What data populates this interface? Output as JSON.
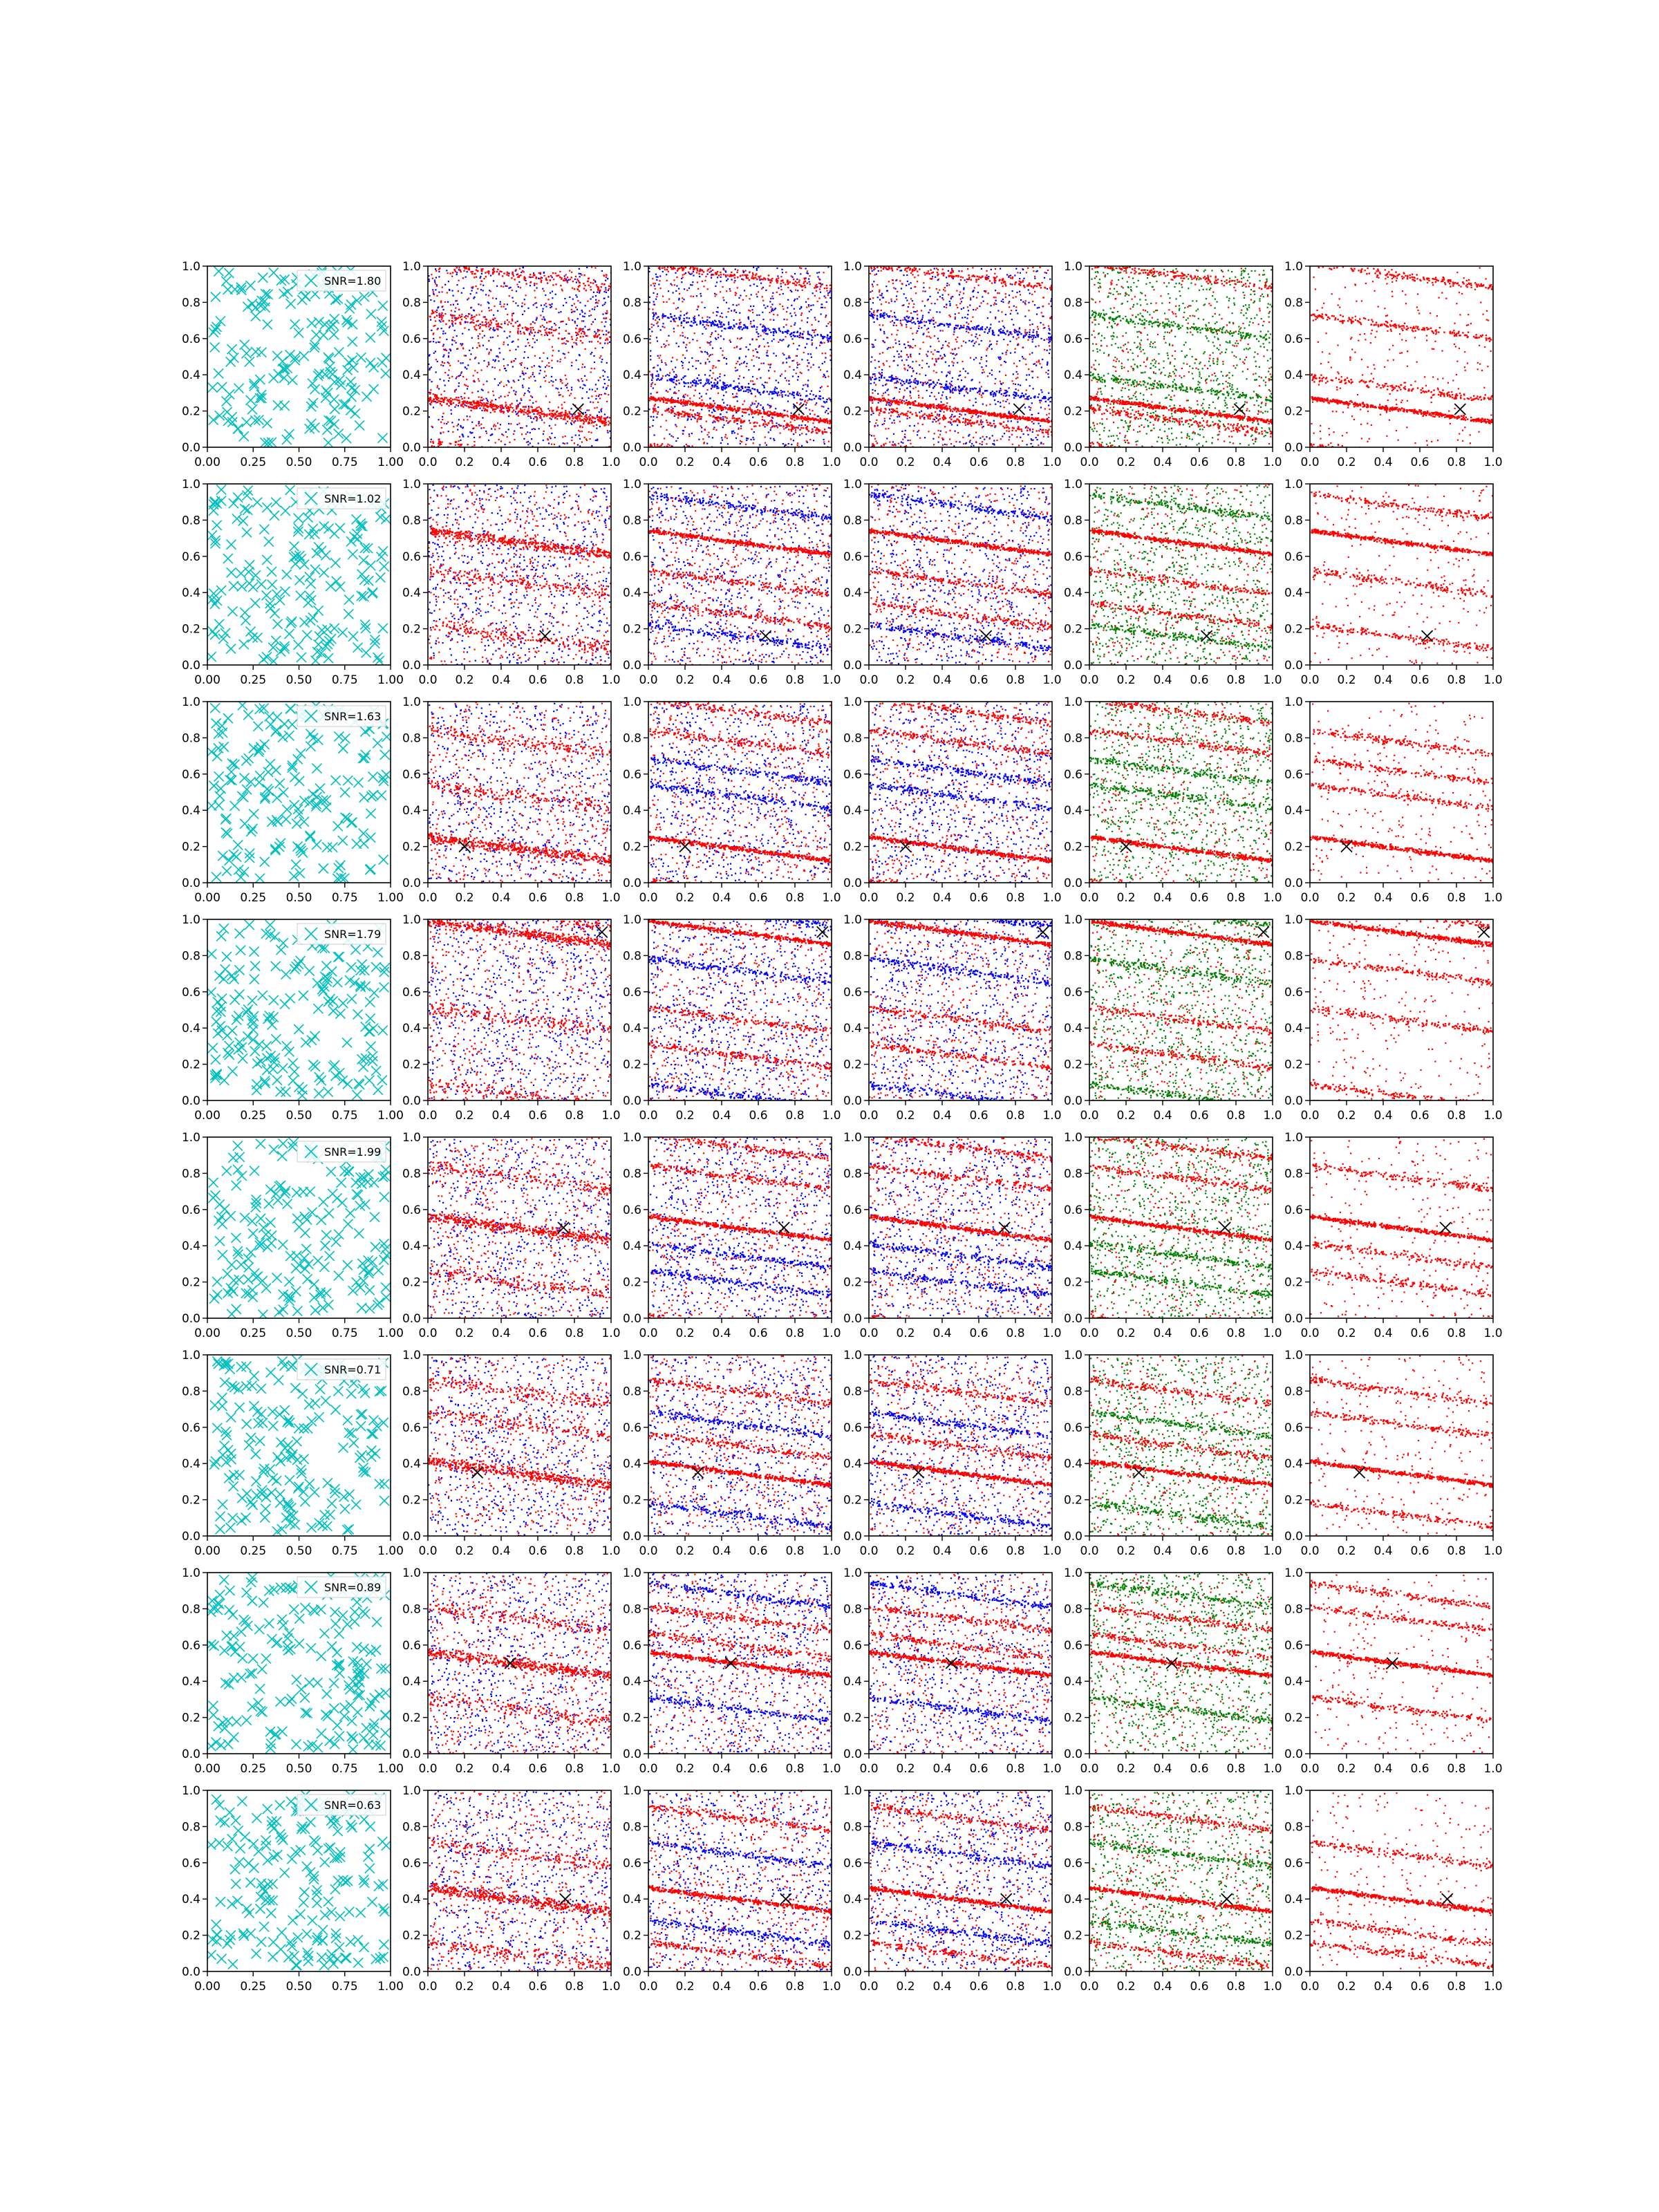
{
  "figure": {
    "rows": 8,
    "cols": 6
  },
  "colors": {
    "cyan": "#00bfbf",
    "red": "#ff0000",
    "blue": "#0000ff",
    "green": "#008000",
    "marker": "#000000"
  },
  "axis_ticks": {
    "first_col_x": [
      "0.00",
      "0.25",
      "0.50",
      "0.75",
      "1.00"
    ],
    "other_cols_x": [
      "0.0",
      "0.2",
      "0.4",
      "0.6",
      "0.8",
      "1.0"
    ],
    "y": [
      "0.0",
      "0.2",
      "0.4",
      "0.6",
      "0.8",
      "1.0"
    ]
  },
  "chart_data": {
    "type": "scatter",
    "layout": "8 rows x 6 columns grid of scatter panels",
    "xlim": [
      0,
      1
    ],
    "ylim": [
      0,
      1
    ],
    "grid": false,
    "column_markers": [
      "cyan x",
      "red and blue dots",
      "red and blue dots",
      "red and blue dots",
      "red and green dots",
      "red dots"
    ],
    "rows": [
      {
        "snr_label": "SNR=1.80",
        "marker_x": [
          0.82,
          0.21
        ],
        "band_slope": -0.13,
        "band_offsets": [
          0.21,
          0.67,
          0.95,
          0.33,
          0.15
        ]
      },
      {
        "snr_label": "SNR=1.02",
        "marker_x": [
          0.64,
          0.16
        ],
        "band_slope": -0.13,
        "band_offsets": [
          0.68,
          0.16,
          0.46,
          0.88,
          0.28
        ]
      },
      {
        "snr_label": "SNR=1.63",
        "marker_x": [
          0.2,
          0.2
        ],
        "band_slope": -0.13,
        "band_offsets": [
          0.19,
          0.48,
          0.78,
          0.62,
          0.95
        ]
      },
      {
        "snr_label": "SNR=1.79",
        "marker_x": [
          0.95,
          0.93
        ],
        "band_slope": -0.13,
        "band_offsets": [
          0.93,
          0.03,
          0.45,
          0.72,
          0.25
        ]
      },
      {
        "snr_label": "SNR=1.99",
        "marker_x": [
          0.74,
          0.5
        ],
        "band_slope": -0.13,
        "band_offsets": [
          0.5,
          0.2,
          0.78,
          0.35,
          0.95
        ]
      },
      {
        "snr_label": "SNR=0.71",
        "marker_x": [
          0.27,
          0.35
        ],
        "band_slope": -0.13,
        "band_offsets": [
          0.35,
          0.62,
          0.8,
          0.12,
          0.5
        ]
      },
      {
        "snr_label": "SNR=0.89",
        "marker_x": [
          0.45,
          0.5
        ],
        "band_slope": -0.13,
        "band_offsets": [
          0.5,
          0.25,
          0.75,
          0.88,
          0.6
        ]
      },
      {
        "snr_label": "SNR=0.63",
        "marker_x": [
          0.75,
          0.4
        ],
        "band_slope": -0.13,
        "band_offsets": [
          0.4,
          0.65,
          0.1,
          0.22,
          0.85
        ]
      }
    ]
  }
}
